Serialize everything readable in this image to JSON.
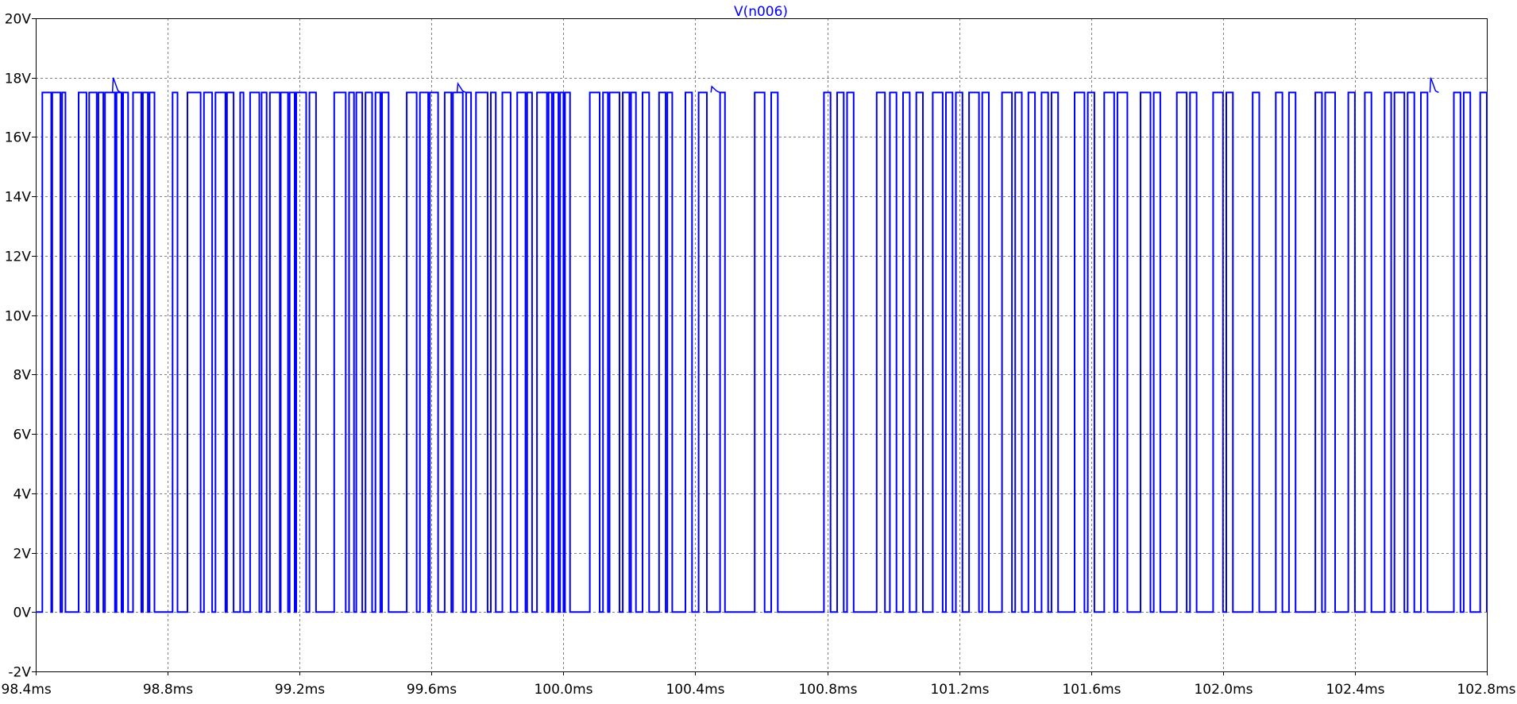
{
  "chart_data": {
    "type": "line",
    "title": "V(n006)",
    "xlabel": "",
    "ylabel": "",
    "x_unit": "ms",
    "y_unit": "V",
    "xlim": [
      98.4,
      102.8
    ],
    "ylim": [
      -2,
      20
    ],
    "x_ticks": [
      "98.4ms",
      "98.8ms",
      "99.2ms",
      "99.6ms",
      "100.0ms",
      "100.4ms",
      "100.8ms",
      "101.2ms",
      "101.6ms",
      "102.0ms",
      "102.4ms",
      "102.8ms"
    ],
    "y_ticks": [
      "-2V",
      "0V",
      "2V",
      "4V",
      "6V",
      "8V",
      "10V",
      "12V",
      "14V",
      "16V",
      "18V",
      "20V"
    ],
    "grid": true,
    "series_color": "#0000ff",
    "series": [
      {
        "name": "V(n006)",
        "low_level": 0,
        "high_level": 17.5,
        "high_intervals": [
          [
            98.42,
            98.447
          ],
          [
            98.45,
            98.475
          ],
          [
            98.48,
            98.49
          ],
          [
            98.53,
            98.554
          ],
          [
            98.562,
            98.585
          ],
          [
            98.59,
            98.605
          ],
          [
            98.61,
            98.64
          ],
          [
            98.645,
            98.66
          ],
          [
            98.665,
            98.68
          ],
          [
            98.695,
            98.72
          ],
          [
            98.725,
            98.74
          ],
          [
            98.745,
            98.76
          ],
          [
            98.815,
            98.83
          ],
          [
            98.86,
            98.9
          ],
          [
            98.91,
            98.935
          ],
          [
            98.945,
            98.975
          ],
          [
            98.98,
            99.0
          ],
          [
            99.02,
            99.03
          ],
          [
            99.05,
            99.078
          ],
          [
            99.085,
            99.1
          ],
          [
            99.11,
            99.14
          ],
          [
            99.143,
            99.165
          ],
          [
            99.17,
            99.185
          ],
          [
            99.19,
            99.22
          ],
          [
            99.23,
            99.25
          ],
          [
            99.305,
            99.34
          ],
          [
            99.35,
            99.365
          ],
          [
            99.372,
            99.39
          ],
          [
            99.4,
            99.42
          ],
          [
            99.43,
            99.445
          ],
          [
            99.45,
            99.47
          ],
          [
            99.525,
            99.555
          ],
          [
            99.565,
            99.59
          ],
          [
            99.595,
            99.62
          ],
          [
            99.64,
            99.66
          ],
          [
            99.665,
            99.695
          ],
          [
            99.705,
            99.72
          ],
          [
            99.735,
            99.77
          ],
          [
            99.78,
            99.795
          ],
          [
            99.815,
            99.84
          ],
          [
            99.86,
            99.885
          ],
          [
            99.89,
            99.905
          ],
          [
            99.92,
            99.95
          ],
          [
            99.955,
            99.965
          ],
          [
            99.97,
            99.985
          ],
          [
            99.99,
            100.0
          ],
          [
            100.005,
            100.02
          ],
          [
            100.08,
            100.11
          ],
          [
            100.12,
            100.135
          ],
          [
            100.14,
            100.17
          ],
          [
            100.18,
            100.2
          ],
          [
            100.205,
            100.22
          ],
          [
            100.24,
            100.26
          ],
          [
            100.29,
            100.31
          ],
          [
            100.315,
            100.33
          ],
          [
            100.37,
            100.39
          ],
          [
            100.41,
            100.435
          ],
          [
            100.475,
            100.49
          ],
          [
            100.58,
            100.61
          ],
          [
            100.63,
            100.65
          ],
          [
            100.79,
            100.81
          ],
          [
            100.83,
            100.85
          ],
          [
            100.86,
            100.88
          ],
          [
            100.95,
            100.975
          ],
          [
            100.99,
            101.01
          ],
          [
            101.03,
            101.05
          ],
          [
            101.07,
            101.09
          ],
          [
            101.12,
            101.15
          ],
          [
            101.16,
            101.18
          ],
          [
            101.19,
            101.21
          ],
          [
            101.23,
            101.26
          ],
          [
            101.27,
            101.29
          ],
          [
            101.33,
            101.36
          ],
          [
            101.37,
            101.39
          ],
          [
            101.41,
            101.43
          ],
          [
            101.45,
            101.47
          ],
          [
            101.48,
            101.5
          ],
          [
            101.55,
            101.58
          ],
          [
            101.59,
            101.61
          ],
          [
            101.64,
            101.67
          ],
          [
            101.68,
            101.71
          ],
          [
            101.75,
            101.78
          ],
          [
            101.79,
            101.81
          ],
          [
            101.86,
            101.89
          ],
          [
            101.9,
            101.92
          ],
          [
            101.97,
            102.0
          ],
          [
            102.01,
            102.03
          ],
          [
            102.09,
            102.11
          ],
          [
            102.16,
            102.18
          ],
          [
            102.2,
            102.22
          ],
          [
            102.28,
            102.3
          ],
          [
            102.31,
            102.34
          ],
          [
            102.38,
            102.4
          ],
          [
            102.43,
            102.45
          ],
          [
            102.49,
            102.51
          ],
          [
            102.52,
            102.55
          ],
          [
            102.56,
            102.58
          ],
          [
            102.6,
            102.62
          ],
          [
            102.7,
            102.72
          ],
          [
            102.73,
            102.75
          ],
          [
            102.78,
            102.8
          ]
        ],
        "overshoot_peaks": [
          [
            98.635,
            18.0
          ],
          [
            99.68,
            17.8
          ],
          [
            100.45,
            17.7
          ],
          [
            102.63,
            18.0
          ]
        ]
      }
    ]
  }
}
